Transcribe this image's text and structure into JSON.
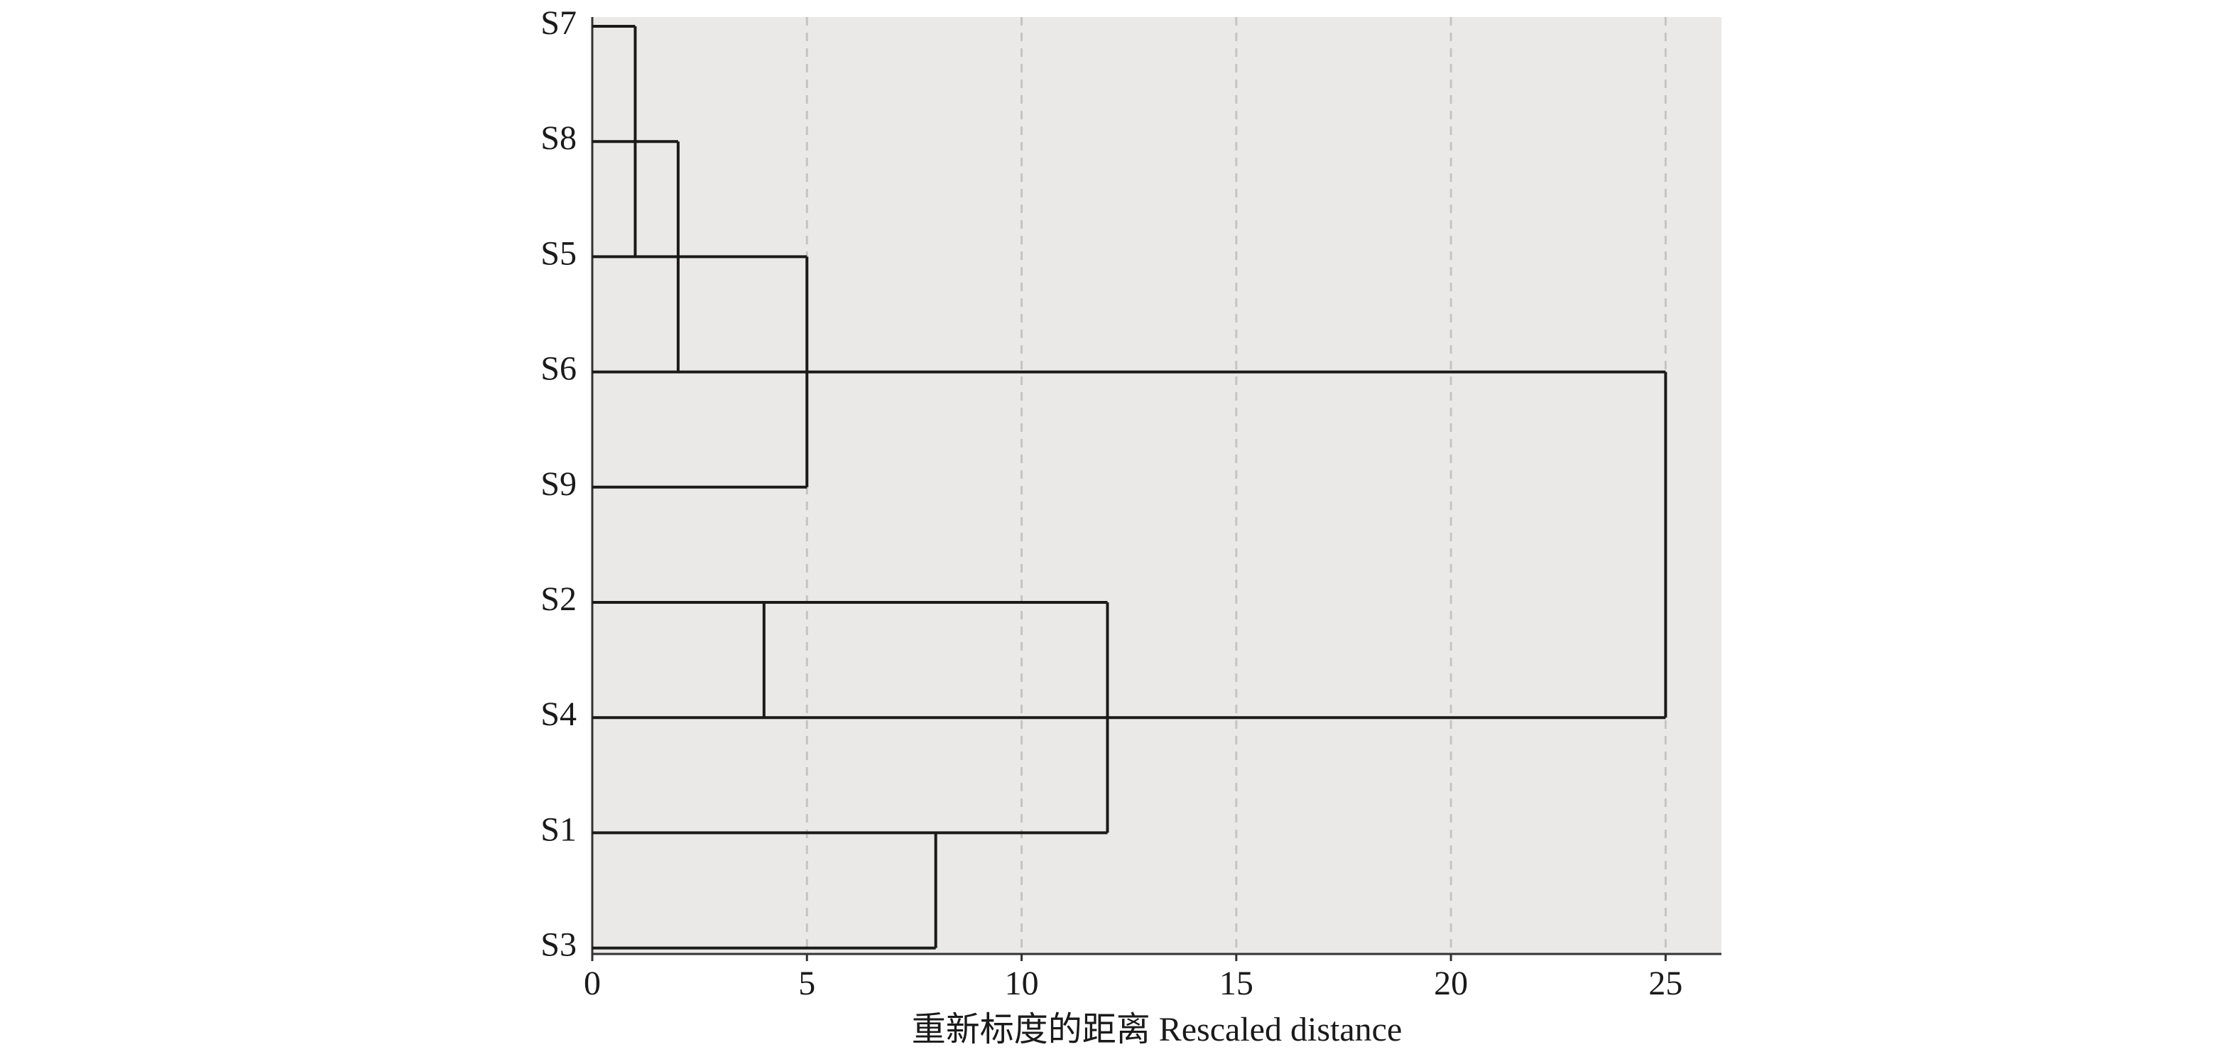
{
  "chart_data": {
    "type": "dendrogram",
    "x_label": "重新标度的距离 Rescaled distance",
    "leaves": [
      "S7",
      "S8",
      "S5",
      "S6",
      "S9",
      "S2",
      "S4",
      "S1",
      "S3"
    ],
    "reach": [
      1,
      2,
      5,
      25,
      5,
      12,
      25,
      12,
      8
    ],
    "joins": [
      {
        "distance": 1,
        "span": [
          0,
          2
        ]
      },
      {
        "distance": 2,
        "span": [
          1,
          3
        ]
      },
      {
        "distance": 5,
        "span": [
          2,
          4
        ]
      },
      {
        "distance": 25,
        "span": [
          3,
          6
        ]
      },
      {
        "distance": 4,
        "span": [
          5,
          6
        ]
      },
      {
        "distance": 12,
        "span": [
          5,
          7
        ]
      },
      {
        "distance": 8,
        "span": [
          7,
          8
        ]
      }
    ],
    "xlim": [
      0,
      26.3
    ],
    "xticks": [
      0,
      5,
      10,
      15,
      20,
      25
    ],
    "grid": true,
    "background": "#ebe9e7",
    "color": "#1a1a1a"
  }
}
